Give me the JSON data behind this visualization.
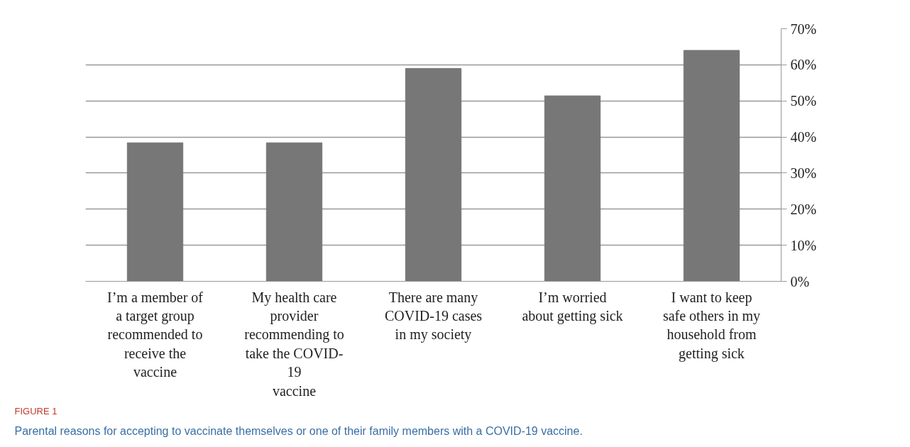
{
  "chart_data": {
    "type": "bar",
    "categories": [
      "I’m a member of\na target group\nrecommended to\nreceive the\nvaccine",
      "My health care\nprovider\nrecommending to\ntake the COVID-\n19\nvaccine",
      "There are many\nCOVID-19 cases\nin my society",
      "I’m worried\nabout getting sick",
      "I want to keep\nsafe others in my\nhousehold from\ngetting sick"
    ],
    "values": [
      38.4,
      38.4,
      59,
      51.4,
      64
    ],
    "color": "#777777",
    "ylim": [
      0,
      70
    ],
    "yticks": [
      {
        "value": 0,
        "label": "0%"
      },
      {
        "value": 10,
        "label": "10%"
      },
      {
        "value": 20,
        "label": "20%"
      },
      {
        "value": 30,
        "label": "30%"
      },
      {
        "value": 40,
        "label": "40%"
      },
      {
        "value": 50,
        "label": "50%"
      },
      {
        "value": 60,
        "label": "60%"
      },
      {
        "value": 70,
        "label": "70%"
      }
    ],
    "grid": "y",
    "annotations": [
      "FIGURE 1",
      "Parental reasons for accepting to vaccinate themselves or one of their family members with a COVID-19 vaccine."
    ]
  }
}
